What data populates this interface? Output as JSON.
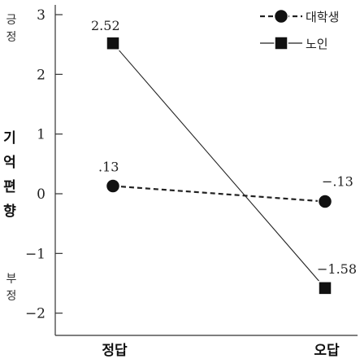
{
  "chart_data": {
    "type": "line",
    "categories": [
      "정답",
      "오답"
    ],
    "series": [
      {
        "name": "대학생",
        "values": [
          0.13,
          -0.13
        ],
        "labels": [
          ".13",
          "−.13"
        ],
        "line_style": "dashed",
        "marker": "circle"
      },
      {
        "name": "노인",
        "values": [
          2.52,
          -1.58
        ],
        "labels": [
          "2.52",
          "−1.58"
        ],
        "line_style": "solid",
        "marker": "square"
      }
    ],
    "ylabel": "기억편향",
    "ylabel_chars": [
      "기",
      "억",
      "편",
      "향"
    ],
    "top_label": [
      "긍",
      "정"
    ],
    "bottom_label": [
      "부",
      "정"
    ],
    "yticks": [
      "3",
      "2",
      "1",
      "0",
      "−1",
      "−2"
    ],
    "ytick_values": [
      3,
      2,
      1,
      0,
      -1,
      -2
    ],
    "ylim": [
      -2.4,
      3.05
    ],
    "legend_position": "top-right",
    "colors": {
      "line": "#222222",
      "marker": "#111111",
      "axis": "#333333"
    }
  }
}
